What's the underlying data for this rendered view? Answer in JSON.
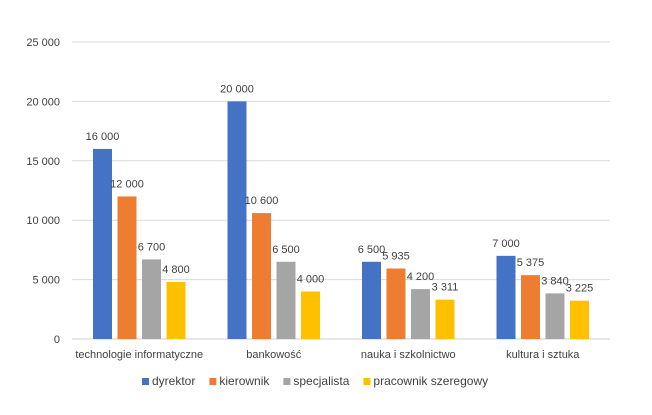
{
  "chart_data": {
    "type": "bar",
    "title": "",
    "xlabel": "",
    "ylabel": "",
    "ylim": [
      0,
      25000
    ],
    "ytick_step": 5000,
    "ytick_labels": [
      "0",
      "5 000",
      "10 000",
      "15 000",
      "20 000",
      "25 000"
    ],
    "grid": true,
    "legend_position": "bottom",
    "categories": [
      "technologie informatyczne",
      "bankowość",
      "nauka i szkolnictwo",
      "kultura i sztuka"
    ],
    "series": [
      {
        "name": "dyrektor",
        "color": "#4472C4",
        "values": [
          16000,
          20000,
          6500,
          7000
        ],
        "labels": [
          "16 000",
          "20 000",
          "6 500",
          "7 000"
        ]
      },
      {
        "name": "kierownik",
        "color": "#ED7D31",
        "values": [
          12000,
          10600,
          5935,
          5375
        ],
        "labels": [
          "12 000",
          "10 600",
          "5 935",
          "5 375"
        ]
      },
      {
        "name": "specjalista",
        "color": "#A5A5A5",
        "values": [
          6700,
          6500,
          4200,
          3840
        ],
        "labels": [
          "6 700",
          "6 500",
          "4 200",
          "3 840"
        ]
      },
      {
        "name": "pracownik szeregowy",
        "color": "#FFC000",
        "values": [
          4800,
          4000,
          3311,
          3225
        ],
        "labels": [
          "4 800",
          "4 000",
          "3 311",
          "3 225"
        ]
      }
    ]
  }
}
